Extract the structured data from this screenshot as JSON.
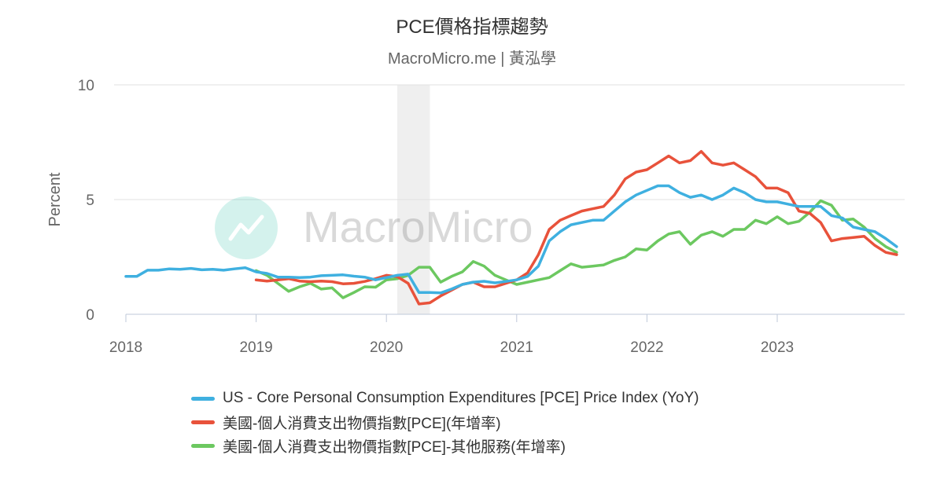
{
  "header": {
    "title": "PCE價格指標趨勢",
    "subtitle": "MacroMicro.me | 黃泓學"
  },
  "watermark": {
    "text": "MacroMicro",
    "icon": "macromicro-logo-icon"
  },
  "chart_data": {
    "type": "line",
    "ylabel": "Percent",
    "ylim": [
      0,
      10
    ],
    "yticks": [
      "0",
      "5",
      "10"
    ],
    "xlim": [
      "2018-01",
      "2023-12"
    ],
    "xticks": [
      "2018",
      "2019",
      "2020",
      "2021",
      "2022",
      "2023"
    ],
    "grid": true,
    "legend_position": "bottom",
    "recession_band": [
      "2020-02",
      "2020-04"
    ],
    "series": [
      {
        "name": "US - Core Personal Consumption Expenditures [PCE] Price Index (YoY)",
        "color": "#3fb0e0",
        "start": "2018-01",
        "values": [
          1.65,
          1.65,
          1.92,
          1.92,
          1.98,
          1.96,
          2.0,
          1.94,
          1.96,
          1.92,
          1.98,
          2.03,
          1.85,
          1.78,
          1.62,
          1.62,
          1.6,
          1.62,
          1.68,
          1.7,
          1.72,
          1.66,
          1.62,
          1.5,
          1.6,
          1.7,
          1.75,
          0.95,
          0.95,
          0.93,
          1.1,
          1.3,
          1.4,
          1.44,
          1.37,
          1.43,
          1.5,
          1.65,
          2.1,
          3.2,
          3.6,
          3.9,
          4.0,
          4.1,
          4.1,
          4.5,
          4.9,
          5.2,
          5.4,
          5.6,
          5.6,
          5.3,
          5.1,
          5.2,
          5.0,
          5.2,
          5.5,
          5.3,
          5.0,
          4.9,
          4.9,
          4.8,
          4.7,
          4.7,
          4.7,
          4.3,
          4.2,
          3.8,
          3.7,
          3.6,
          3.3,
          2.95
        ]
      },
      {
        "name": "美國-個人消費支出物價指數[PCE](年增率)",
        "color": "#e8523b",
        "start": "2019-01",
        "values": [
          1.5,
          1.45,
          1.5,
          1.55,
          1.45,
          1.42,
          1.45,
          1.42,
          1.33,
          1.35,
          1.43,
          1.55,
          1.7,
          1.64,
          1.35,
          0.45,
          0.5,
          0.8,
          1.05,
          1.3,
          1.4,
          1.2,
          1.2,
          1.35,
          1.5,
          1.8,
          2.6,
          3.7,
          4.1,
          4.3,
          4.5,
          4.6,
          4.7,
          5.2,
          5.9,
          6.2,
          6.3,
          6.6,
          6.9,
          6.6,
          6.7,
          7.1,
          6.6,
          6.5,
          6.6,
          6.3,
          6.0,
          5.5,
          5.5,
          5.3,
          4.5,
          4.4,
          4.0,
          3.2,
          3.3,
          3.35,
          3.4,
          3.0,
          2.7,
          2.6
        ]
      },
      {
        "name": "美國-個人消費支出物價指數[PCE]-其他服務(年增率)",
        "color": "#6cc860",
        "start": "2019-01",
        "values": [
          1.9,
          1.7,
          1.35,
          1.0,
          1.2,
          1.35,
          1.1,
          1.15,
          0.72,
          0.95,
          1.2,
          1.18,
          1.5,
          1.55,
          1.7,
          2.05,
          2.05,
          1.4,
          1.65,
          1.85,
          2.3,
          2.1,
          1.7,
          1.5,
          1.3,
          1.4,
          1.5,
          1.6,
          1.9,
          2.2,
          2.05,
          2.1,
          2.15,
          2.35,
          2.5,
          2.85,
          2.8,
          3.2,
          3.5,
          3.6,
          3.05,
          3.45,
          3.6,
          3.4,
          3.7,
          3.7,
          4.1,
          3.95,
          4.25,
          3.95,
          4.05,
          4.45,
          4.95,
          4.75,
          4.1,
          4.15,
          3.8,
          3.3,
          2.95,
          2.7
        ]
      }
    ]
  }
}
